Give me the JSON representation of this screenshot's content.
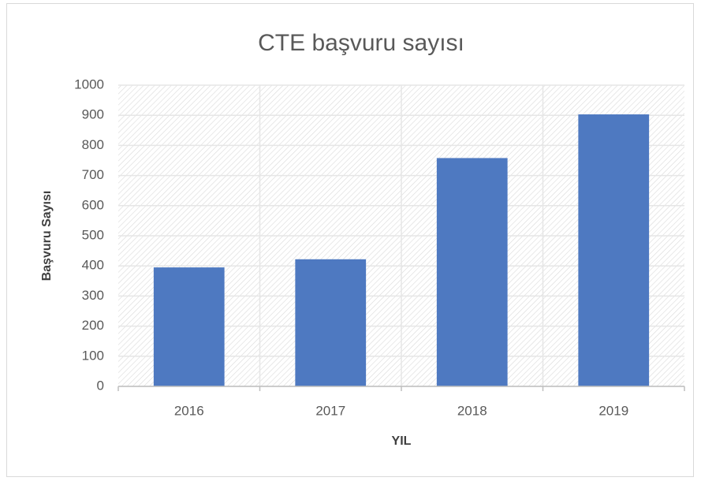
{
  "chart_data": {
    "type": "bar",
    "title": "CTE başvuru sayısı",
    "x_label": "YIL",
    "y_label": "Başvuru Sayısı",
    "categories": [
      "2016",
      "2017",
      "2018",
      "2019"
    ],
    "values": [
      395,
      422,
      758,
      903
    ],
    "color": "#4e79c1",
    "ylim": [
      0,
      1000
    ],
    "yticks": [
      0,
      100,
      200,
      300,
      400,
      500,
      600,
      700,
      800,
      900,
      1000
    ],
    "grid": true
  }
}
